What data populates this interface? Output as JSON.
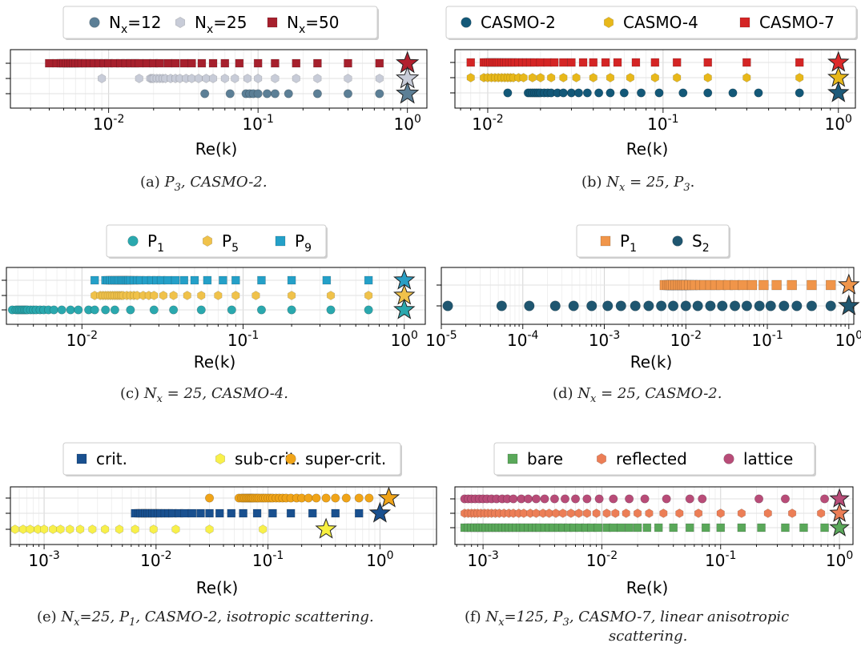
{
  "chart_data": [
    {
      "type": "scatter",
      "xlabel": "Re(k)",
      "xscale": "log",
      "xlim": [
        0.0022,
        1.35
      ],
      "xticks": [
        {
          "v": 0.01,
          "l": "10",
          "e": "-2"
        },
        {
          "v": 0.1,
          "l": "10",
          "e": "-1"
        },
        {
          "v": 1,
          "l": "10",
          "e": "0"
        }
      ],
      "caption": [
        "(a) ",
        {
          "i": "P"
        },
        {
          "isub": "3"
        },
        {
          "i": ", CASMO-2."
        }
      ],
      "legend": {
        "placement": "top"
      },
      "stars": [
        {
          "row": 2,
          "x": 1,
          "color": "#b2202e"
        },
        {
          "row": 1,
          "x": 1,
          "color": "#c8ccd8"
        },
        {
          "row": 0,
          "x": 1,
          "color": "#5c7f96"
        }
      ],
      "series": [
        {
          "name": "N",
          "sub": "x",
          "suffix": "=12",
          "marker": "circle",
          "color": "#5c7f96",
          "row": 0,
          "x": [
            0.044,
            0.065,
            0.083,
            0.088,
            0.093,
            0.1,
            0.115,
            0.13,
            0.16,
            0.25,
            0.4,
            0.65
          ]
        },
        {
          "name": "N",
          "sub": "x",
          "suffix": "=25",
          "marker": "hexagon",
          "color": "#c8ccd8",
          "row": 1,
          "x": [
            0.009,
            0.016,
            0.019,
            0.0195,
            0.02,
            0.021,
            0.022,
            0.023,
            0.024,
            0.026,
            0.028,
            0.03,
            0.033,
            0.036,
            0.04,
            0.045,
            0.05,
            0.06,
            0.07,
            0.085,
            0.1,
            0.13,
            0.18,
            0.25,
            0.4,
            0.65
          ]
        },
        {
          "name": "N",
          "sub": "x",
          "suffix": "=50",
          "marker": "square",
          "color": "#a6202d",
          "row": 2,
          "x": [
            0.004,
            0.0045,
            0.0048,
            0.005,
            0.0052,
            0.0054,
            0.0056,
            0.0058,
            0.006,
            0.0063,
            0.0066,
            0.007,
            0.0075,
            0.008,
            0.0086,
            0.0093,
            0.01,
            0.011,
            0.012,
            0.013,
            0.014,
            0.015,
            0.016,
            0.018,
            0.02,
            0.022,
            0.025,
            0.028,
            0.032,
            0.036,
            0.042,
            0.05,
            0.06,
            0.075,
            0.1,
            0.13,
            0.18,
            0.25,
            0.4,
            0.65
          ]
        }
      ]
    },
    {
      "type": "scatter",
      "xlabel": "Re(k)",
      "xscale": "log",
      "xlim": [
        0.0065,
        1.25
      ],
      "xticks": [
        {
          "v": 0.01,
          "l": "10",
          "e": "-2"
        },
        {
          "v": 0.1,
          "l": "10",
          "e": "-1"
        },
        {
          "v": 1,
          "l": "10",
          "e": "0"
        }
      ],
      "caption": [
        "(b) ",
        {
          "i": "N"
        },
        {
          "isub": "x"
        },
        {
          "i": " = 25, P"
        },
        {
          "isub": "3"
        },
        "."
      ],
      "legend": {
        "placement": "top"
      },
      "stars": [
        {
          "row": 2,
          "x": 1,
          "color": "#dd2a2a"
        },
        {
          "row": 1,
          "x": 1,
          "color": "#e8b81a"
        },
        {
          "row": 0,
          "x": 1,
          "color": "#1c5a7a"
        }
      ],
      "series": [
        {
          "name": "CASMO-2",
          "marker": "circle",
          "color": "#135878",
          "row": 0,
          "x": [
            0.013,
            0.017,
            0.0175,
            0.018,
            0.0185,
            0.019,
            0.0195,
            0.02,
            0.021,
            0.022,
            0.023,
            0.025,
            0.027,
            0.03,
            0.033,
            0.037,
            0.043,
            0.05,
            0.06,
            0.075,
            0.095,
            0.13,
            0.18,
            0.25,
            0.35,
            0.6
          ]
        },
        {
          "name": "CASMO-4",
          "marker": "hexagon",
          "color": "#e8b81a",
          "row": 1,
          "x": [
            0.008,
            0.0095,
            0.01,
            0.0105,
            0.011,
            0.0115,
            0.012,
            0.0125,
            0.013,
            0.0135,
            0.014,
            0.015,
            0.016,
            0.018,
            0.02,
            0.023,
            0.027,
            0.032,
            0.04,
            0.05,
            0.065,
            0.09,
            0.12,
            0.18,
            0.3,
            0.6
          ]
        },
        {
          "name": "CASMO-7",
          "marker": "square",
          "color": "#d42525",
          "row": 2,
          "x": [
            0.008,
            0.0095,
            0.0098,
            0.0101,
            0.0104,
            0.0107,
            0.011,
            0.0113,
            0.0116,
            0.012,
            0.0124,
            0.0128,
            0.0133,
            0.0138,
            0.0143,
            0.015,
            0.0158,
            0.0166,
            0.0175,
            0.0185,
            0.02,
            0.022,
            0.024,
            0.027,
            0.03,
            0.035,
            0.04,
            0.047,
            0.055,
            0.07,
            0.09,
            0.12,
            0.18,
            0.3,
            0.6
          ]
        }
      ]
    },
    {
      "type": "scatter",
      "xlabel": "Re(k)",
      "xscale": "log",
      "xlim": [
        0.0034,
        1.35
      ],
      "xticks": [
        {
          "v": 0.01,
          "l": "10",
          "e": "-2"
        },
        {
          "v": 0.1,
          "l": "10",
          "e": "-1"
        },
        {
          "v": 1,
          "l": "10",
          "e": "0"
        }
      ],
      "caption": [
        "(c) ",
        {
          "i": "N"
        },
        {
          "isub": "x"
        },
        {
          "i": " = 25, CASMO-4."
        }
      ],
      "legend": {
        "placement": "top"
      },
      "stars": [
        {
          "row": 2,
          "x": 1,
          "color": "#2a9ec4"
        },
        {
          "row": 1,
          "x": 1,
          "color": "#f0c24a"
        },
        {
          "row": 0,
          "x": 1,
          "color": "#2aa8ae"
        }
      ],
      "series": [
        {
          "name": "P",
          "sub": "1",
          "marker": "circle",
          "color": "#2aa8ae",
          "row": 0,
          "x": [
            0.0037,
            0.0039,
            0.004,
            0.0041,
            0.0042,
            0.0043,
            0.0044,
            0.0045,
            0.0046,
            0.0048,
            0.005,
            0.0052,
            0.0055,
            0.0058,
            0.0062,
            0.0067,
            0.0075,
            0.0085,
            0.0095,
            0.011,
            0.012,
            0.014,
            0.016,
            0.02,
            0.028,
            0.037,
            0.055,
            0.085,
            0.13,
            0.2,
            0.35,
            0.6
          ]
        },
        {
          "name": "P",
          "sub": "5",
          "marker": "hexagon",
          "color": "#f0c24a",
          "row": 1,
          "x": [
            0.012,
            0.013,
            0.0135,
            0.014,
            0.0145,
            0.015,
            0.0155,
            0.016,
            0.0165,
            0.017,
            0.0175,
            0.018,
            0.019,
            0.02,
            0.021,
            0.022,
            0.024,
            0.026,
            0.028,
            0.032,
            0.037,
            0.045,
            0.055,
            0.07,
            0.09,
            0.12,
            0.2,
            0.35,
            0.6
          ]
        },
        {
          "name": "P",
          "sub": "9",
          "marker": "square",
          "color": "#24a0c8",
          "row": 2,
          "x": [
            0.012,
            0.014,
            0.0145,
            0.015,
            0.0155,
            0.016,
            0.0165,
            0.017,
            0.0175,
            0.018,
            0.0185,
            0.019,
            0.0195,
            0.02,
            0.021,
            0.022,
            0.023,
            0.025,
            0.027,
            0.029,
            0.031,
            0.034,
            0.038,
            0.043,
            0.05,
            0.06,
            0.075,
            0.09,
            0.13,
            0.2,
            0.33,
            0.6
          ]
        }
      ]
    },
    {
      "type": "scatter",
      "xlabel": "Re(k)",
      "xscale": "log",
      "xlim": [
        1e-05,
        1.15
      ],
      "xticks": [
        {
          "v": 1e-05,
          "l": "10",
          "e": "-5"
        },
        {
          "v": 0.0001,
          "l": "10",
          "e": "-4"
        },
        {
          "v": 0.001,
          "l": "10",
          "e": "-3"
        },
        {
          "v": 0.01,
          "l": "10",
          "e": "-2"
        },
        {
          "v": 0.1,
          "l": "10",
          "e": "-1"
        },
        {
          "v": 1,
          "l": "10",
          "e": "0"
        }
      ],
      "caption": [
        "(d) ",
        {
          "i": "N"
        },
        {
          "isub": "x"
        },
        {
          "i": " = 25, CASMO-2."
        }
      ],
      "legend": {
        "placement": "top"
      },
      "stars": [
        {
          "row": 1,
          "x": 1,
          "color": "#f0954a"
        },
        {
          "row": 0,
          "x": 1,
          "color": "#1f5670"
        }
      ],
      "series": [
        {
          "name": "P",
          "sub": "1",
          "marker": "square",
          "color": "#f0954a",
          "row": 1,
          "x": [
            0.0055,
            0.006,
            0.0063,
            0.0066,
            0.007,
            0.0075,
            0.008,
            0.0085,
            0.009,
            0.0095,
            0.01,
            0.011,
            0.012,
            0.013,
            0.015,
            0.017,
            0.02,
            0.023,
            0.027,
            0.033,
            0.04,
            0.05,
            0.065,
            0.09,
            0.13,
            0.2,
            0.35,
            0.6
          ]
        },
        {
          "name": "S",
          "sub": "2",
          "marker": "circle",
          "color": "#1f5670",
          "row": 0,
          "x": [
            1.2e-05,
            5.5e-05,
            0.00012,
            0.00025,
            0.00042,
            0.0007,
            0.0011,
            0.0016,
            0.0024,
            0.0035,
            0.005,
            0.007,
            0.01,
            0.014,
            0.02,
            0.028,
            0.04,
            0.056,
            0.08,
            0.11,
            0.16,
            0.23,
            0.35,
            0.6
          ]
        }
      ]
    },
    {
      "type": "scatter",
      "xlabel": "Re(k)",
      "xscale": "log",
      "xlim": [
        0.0005,
        3.2
      ],
      "xticks": [
        {
          "v": 0.001,
          "l": "10",
          "e": "-3"
        },
        {
          "v": 0.01,
          "l": "10",
          "e": "-2"
        },
        {
          "v": 0.1,
          "l": "10",
          "e": "-1"
        },
        {
          "v": 1,
          "l": "10",
          "e": "0"
        }
      ],
      "caption": [
        "(e) ",
        {
          "i": "N"
        },
        {
          "isub": "x"
        },
        {
          "i": "=25, P"
        },
        {
          "isub": "1"
        },
        {
          "i": ", CASMO-2, isotropic scattering."
        }
      ],
      "legend": {
        "placement": "top"
      },
      "stars": [
        {
          "row": 2,
          "x": 1.2,
          "color": "#f0a418"
        },
        {
          "row": 1,
          "x": 1.0,
          "color": "#19508f"
        },
        {
          "row": 0,
          "x": 0.33,
          "color": "#f8f040"
        }
      ],
      "series": [
        {
          "name": "crit.",
          "marker": "square",
          "color": "#19508f",
          "row": 1,
          "x": [
            0.0065,
            0.007,
            0.0073,
            0.0076,
            0.008,
            0.0084,
            0.0088,
            0.0093,
            0.0098,
            0.0104,
            0.011,
            0.012,
            0.013,
            0.014,
            0.016,
            0.018,
            0.021,
            0.025,
            0.03,
            0.037,
            0.047,
            0.06,
            0.08,
            0.11,
            0.16,
            0.25,
            0.4,
            0.65
          ]
        },
        {
          "name": "sub-crit.",
          "marker": "hexagon",
          "color": "#f8f04a",
          "row": 0,
          "x": [
            0.00055,
            0.00065,
            0.00075,
            0.00088,
            0.001,
            0.0012,
            0.0014,
            0.0017,
            0.0021,
            0.0027,
            0.0035,
            0.0047,
            0.0065,
            0.0095,
            0.015,
            0.03,
            0.09
          ]
        },
        {
          "name": "super-crit.",
          "marker": "circle",
          "color": "#f0a418",
          "row": 2,
          "x": [
            0.03,
            0.055,
            0.058,
            0.06,
            0.062,
            0.064,
            0.066,
            0.068,
            0.07,
            0.072,
            0.074,
            0.077,
            0.08,
            0.083,
            0.087,
            0.091,
            0.095,
            0.1,
            0.105,
            0.11,
            0.118,
            0.126,
            0.135,
            0.145,
            0.16,
            0.18,
            0.2,
            0.23,
            0.27,
            0.33,
            0.4,
            0.5,
            0.65,
            0.8
          ]
        }
      ]
    },
    {
      "type": "scatter",
      "xlabel": "Re(k)",
      "xscale": "log",
      "xlim": [
        0.00058,
        1.3
      ],
      "xticks": [
        {
          "v": 0.001,
          "l": "10",
          "e": "-3"
        },
        {
          "v": 0.01,
          "l": "10",
          "e": "-2"
        },
        {
          "v": 0.1,
          "l": "10",
          "e": "-1"
        },
        {
          "v": 1,
          "l": "10",
          "e": "0"
        }
      ],
      "caption": [
        "(f) ",
        {
          "i": "N"
        },
        {
          "isub": "x"
        },
        {
          "i": "=125, P"
        },
        {
          "isub": "3"
        },
        {
          "i": ", CASMO-7, linear anisotropic"
        }
      ],
      "caption2": [
        {
          "i": "scattering."
        }
      ],
      "legend": {
        "placement": "top"
      },
      "stars": [
        {
          "row": 2,
          "x": 1,
          "color": "#b84c78"
        },
        {
          "row": 1,
          "x": 1,
          "color": "#ec7e56"
        },
        {
          "row": 0,
          "x": 1,
          "color": "#5aa85a"
        }
      ],
      "series": [
        {
          "name": "bare",
          "marker": "square",
          "color": "#5aa85a",
          "row": 0,
          "x": [
            0.0007,
            0.00075,
            0.0008,
            0.00085,
            0.0009,
            0.00095,
            0.001,
            0.00106,
            0.00113,
            0.0012,
            0.00128,
            0.00136,
            0.00145,
            0.00155,
            0.00165,
            0.00177,
            0.0019,
            0.00205,
            0.0022,
            0.0024,
            0.0026,
            0.0028,
            0.003,
            0.0033,
            0.0036,
            0.0039,
            0.0043,
            0.0047,
            0.0052,
            0.0058,
            0.0065,
            0.0073,
            0.0082,
            0.0093,
            0.011,
            0.0125,
            0.0145,
            0.017,
            0.02,
            0.024,
            0.03,
            0.04,
            0.055,
            0.075,
            0.1,
            0.15,
            0.22,
            0.35,
            0.5,
            0.75
          ]
        },
        {
          "name": "reflected",
          "marker": "hexagon",
          "color": "#ec7e56",
          "row": 1,
          "x": [
            0.0007,
            0.00075,
            0.0008,
            0.00085,
            0.0009,
            0.00096,
            0.00103,
            0.0011,
            0.00118,
            0.00127,
            0.00137,
            0.0015,
            0.00165,
            0.0018,
            0.002,
            0.0022,
            0.0025,
            0.0028,
            0.0032,
            0.0036,
            0.0041,
            0.0047,
            0.0055,
            0.0064,
            0.0075,
            0.009,
            0.011,
            0.013,
            0.016,
            0.02,
            0.025,
            0.033,
            0.045,
            0.065,
            0.1,
            0.15,
            0.25,
            0.4,
            0.7
          ]
        },
        {
          "name": "lattice",
          "marker": "circle",
          "color": "#b84c78",
          "row": 2,
          "x": [
            0.0007,
            0.00075,
            0.0008,
            0.00086,
            0.00093,
            0.001,
            0.00108,
            0.00118,
            0.0013,
            0.00145,
            0.0016,
            0.0018,
            0.0021,
            0.0024,
            0.0028,
            0.0033,
            0.004,
            0.0049,
            0.006,
            0.0075,
            0.0095,
            0.0125,
            0.017,
            0.023,
            0.035,
            0.055,
            0.07,
            0.21,
            0.35,
            0.75
          ]
        }
      ]
    }
  ]
}
